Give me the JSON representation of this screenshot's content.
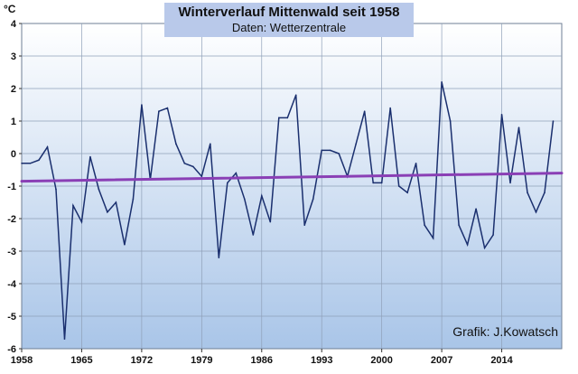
{
  "chart_data": {
    "type": "line",
    "title": "Winterverlauf Mittenwald seit 1958",
    "subtitle": "Daten: Wetterzentrale",
    "ylabel": "°C",
    "credit": "Grafik: J.Kowatsch",
    "xlim": [
      1958,
      2021
    ],
    "ylim": [
      -6,
      4
    ],
    "x_ticks": [
      1958,
      1965,
      1972,
      1979,
      1986,
      1993,
      2000,
      2007,
      2014
    ],
    "y_ticks": [
      -6,
      -5,
      -4,
      -3,
      -2,
      -1,
      0,
      1,
      2,
      3,
      4
    ],
    "grid": true,
    "legend": "none",
    "colors": {
      "series": "#1a2f6e",
      "trend": "#8a3fb5",
      "title_bar": "#b9c9ea",
      "plot_bg_top": "#ffffff",
      "plot_bg_bottom": "#a9c5e8",
      "grid": "#8fa0b8"
    },
    "series": [
      {
        "x": [
          1958,
          1959,
          1960,
          1961,
          1962,
          1963,
          1964,
          1965,
          1966,
          1967,
          1968,
          1969,
          1970,
          1971,
          1972,
          1973,
          1974,
          1975,
          1976,
          1977,
          1978,
          1979,
          1980,
          1981,
          1982,
          1983,
          1984,
          1985,
          1986,
          1987,
          1988,
          1989,
          1990,
          1991,
          1992,
          1993,
          1994,
          1995,
          1996,
          1997,
          1998,
          1999,
          2000,
          2001,
          2002,
          2003,
          2004,
          2005,
          2006,
          2007,
          2008,
          2009,
          2010,
          2011,
          2012,
          2013,
          2014,
          2015,
          2016,
          2017,
          2018,
          2019,
          2020
        ],
        "values": [
          -0.3,
          -0.3,
          -0.2,
          0.2,
          -1.1,
          -5.7,
          -1.6,
          -2.1,
          -0.1,
          -1.1,
          -1.8,
          -1.5,
          -2.8,
          -1.4,
          1.5,
          -0.8,
          1.3,
          1.4,
          0.3,
          -0.3,
          -0.4,
          -0.7,
          0.3,
          -3.2,
          -0.9,
          -0.6,
          -1.4,
          -2.5,
          -1.3,
          -2.1,
          1.1,
          1.1,
          1.8,
          -2.2,
          -1.4,
          0.1,
          0.1,
          0.0,
          -0.7,
          0.3,
          1.3,
          -0.9,
          -0.9,
          1.4,
          -1.0,
          -1.2,
          -0.3,
          -2.2,
          -2.6,
          2.2,
          1.0,
          -2.2,
          -2.8,
          -1.7,
          -2.9,
          -2.5,
          1.2,
          -0.9,
          0.8,
          -1.2,
          -1.8,
          -1.2,
          1.0
        ]
      },
      {
        "kind": "trend",
        "x": [
          1958,
          2021
        ],
        "values": [
          -0.85,
          -0.6
        ]
      }
    ]
  }
}
